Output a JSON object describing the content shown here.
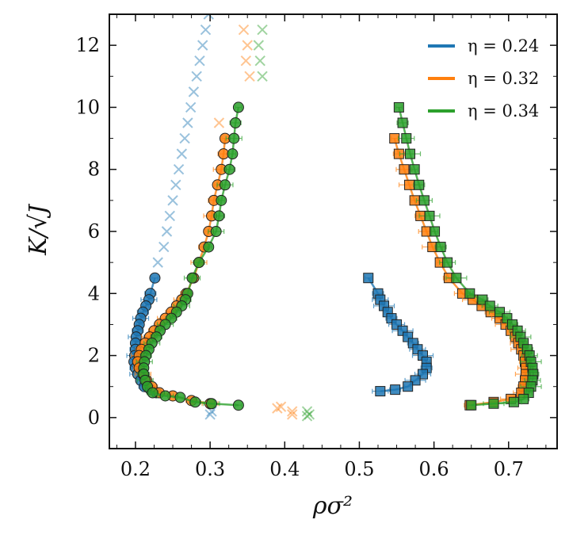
{
  "chart_data": {
    "type": "scatter",
    "xlabel": "ρσ²",
    "ylabel": "K/√J",
    "xlim": [
      0.165,
      0.765
    ],
    "ylim": [
      -1.0,
      13.0
    ],
    "xticks": [
      {
        "value": 0.2,
        "label": "0.2"
      },
      {
        "value": 0.3,
        "label": "0.3"
      },
      {
        "value": 0.4,
        "label": "0.4"
      },
      {
        "value": 0.5,
        "label": "0.5"
      },
      {
        "value": 0.6,
        "label": "0.6"
      },
      {
        "value": 0.7,
        "label": "0.7"
      }
    ],
    "yticks": [
      {
        "value": 0,
        "label": "0"
      },
      {
        "value": 2,
        "label": "2"
      },
      {
        "value": 4,
        "label": "4"
      },
      {
        "value": 6,
        "label": "6"
      },
      {
        "value": 8,
        "label": "8"
      },
      {
        "value": 10,
        "label": "10"
      },
      {
        "value": 12,
        "label": "12"
      }
    ],
    "legend": {
      "placement": "top-right",
      "entries": [
        {
          "label": "η = 0.24",
          "color": "#1f77b4"
        },
        {
          "label": "η = 0.32",
          "color": "#ff7f0e"
        },
        {
          "label": "η = 0.34",
          "color": "#2ca02c"
        }
      ]
    },
    "series": [
      {
        "name": "η = 0.24",
        "color": "#1f77b4",
        "crosses": [
          [
            0.23,
            5.0
          ],
          [
            0.238,
            5.5
          ],
          [
            0.242,
            6.0
          ],
          [
            0.246,
            6.5
          ],
          [
            0.25,
            7.0
          ],
          [
            0.254,
            7.5
          ],
          [
            0.258,
            8.0
          ],
          [
            0.262,
            8.5
          ],
          [
            0.266,
            9.0
          ],
          [
            0.27,
            9.5
          ],
          [
            0.274,
            10.0
          ],
          [
            0.278,
            10.5
          ],
          [
            0.282,
            11.0
          ],
          [
            0.286,
            11.5
          ],
          [
            0.29,
            12.0
          ],
          [
            0.294,
            12.5
          ],
          [
            0.298,
            13.0
          ],
          [
            0.3,
            0.1
          ],
          [
            0.302,
            0.2
          ]
        ],
        "vapor": [
          [
            0.226,
            4.5
          ],
          [
            0.22,
            4.0
          ],
          [
            0.218,
            3.8
          ],
          [
            0.214,
            3.6
          ],
          [
            0.21,
            3.4
          ],
          [
            0.207,
            3.2
          ],
          [
            0.205,
            3.0
          ],
          [
            0.203,
            2.8
          ],
          [
            0.201,
            2.6
          ],
          [
            0.2,
            2.4
          ],
          [
            0.2,
            2.2
          ],
          [
            0.199,
            2.0
          ],
          [
            0.198,
            1.8
          ],
          [
            0.2,
            1.6
          ],
          [
            0.203,
            1.4
          ],
          [
            0.207,
            1.2
          ],
          [
            0.212,
            1.0
          ],
          [
            0.22,
            0.9
          ],
          [
            0.228,
            0.8
          ]
        ],
        "liquid": [
          [
            0.512,
            4.5
          ],
          [
            0.525,
            4.0
          ],
          [
            0.528,
            3.8
          ],
          [
            0.533,
            3.6
          ],
          [
            0.538,
            3.4
          ],
          [
            0.543,
            3.2
          ],
          [
            0.55,
            3.0
          ],
          [
            0.558,
            2.8
          ],
          [
            0.565,
            2.6
          ],
          [
            0.572,
            2.4
          ],
          [
            0.578,
            2.2
          ],
          [
            0.585,
            2.0
          ],
          [
            0.59,
            1.8
          ],
          [
            0.59,
            1.6
          ],
          [
            0.585,
            1.4
          ],
          [
            0.575,
            1.2
          ],
          [
            0.565,
            1.0
          ],
          [
            0.548,
            0.9
          ],
          [
            0.528,
            0.85
          ]
        ]
      },
      {
        "name": "η = 0.32",
        "color": "#ff7f0e",
        "crosses": [
          [
            0.312,
            9.5
          ],
          [
            0.345,
            12.5
          ],
          [
            0.35,
            12.0
          ],
          [
            0.348,
            11.5
          ],
          [
            0.353,
            11.0
          ],
          [
            0.39,
            0.3
          ],
          [
            0.395,
            0.35
          ],
          [
            0.41,
            0.1
          ],
          [
            0.41,
            0.2
          ]
        ],
        "vapor": [
          [
            0.32,
            9.0
          ],
          [
            0.318,
            8.5
          ],
          [
            0.315,
            8.0
          ],
          [
            0.31,
            7.5
          ],
          [
            0.305,
            7.0
          ],
          [
            0.302,
            6.5
          ],
          [
            0.298,
            6.0
          ],
          [
            0.292,
            5.5
          ],
          [
            0.285,
            5.0
          ],
          [
            0.278,
            4.5
          ],
          [
            0.268,
            4.0
          ],
          [
            0.262,
            3.8
          ],
          [
            0.255,
            3.6
          ],
          [
            0.248,
            3.4
          ],
          [
            0.24,
            3.2
          ],
          [
            0.232,
            3.0
          ],
          [
            0.225,
            2.8
          ],
          [
            0.219,
            2.6
          ],
          [
            0.213,
            2.4
          ],
          [
            0.208,
            2.2
          ],
          [
            0.205,
            2.0
          ],
          [
            0.203,
            1.8
          ],
          [
            0.205,
            1.6
          ],
          [
            0.21,
            1.4
          ],
          [
            0.215,
            1.2
          ],
          [
            0.222,
            1.0
          ],
          [
            0.232,
            0.8
          ],
          [
            0.25,
            0.7
          ],
          [
            0.275,
            0.55
          ],
          [
            0.3,
            0.45
          ]
        ],
        "liquid": [
          [
            0.547,
            9.0
          ],
          [
            0.553,
            8.5
          ],
          [
            0.56,
            8.0
          ],
          [
            0.567,
            7.5
          ],
          [
            0.574,
            7.0
          ],
          [
            0.582,
            6.5
          ],
          [
            0.59,
            6.0
          ],
          [
            0.598,
            5.5
          ],
          [
            0.608,
            5.0
          ],
          [
            0.62,
            4.5
          ],
          [
            0.638,
            4.0
          ],
          [
            0.652,
            3.8
          ],
          [
            0.664,
            3.6
          ],
          [
            0.676,
            3.4
          ],
          [
            0.688,
            3.2
          ],
          [
            0.696,
            3.0
          ],
          [
            0.703,
            2.8
          ],
          [
            0.709,
            2.6
          ],
          [
            0.713,
            2.4
          ],
          [
            0.717,
            2.2
          ],
          [
            0.72,
            2.0
          ],
          [
            0.722,
            1.8
          ],
          [
            0.723,
            1.6
          ],
          [
            0.723,
            1.4
          ],
          [
            0.722,
            1.2
          ],
          [
            0.72,
            1.0
          ],
          [
            0.717,
            0.8
          ],
          [
            0.703,
            0.6
          ],
          [
            0.68,
            0.5
          ],
          [
            0.648,
            0.4
          ]
        ]
      },
      {
        "name": "η = 0.34",
        "color": "#2ca02c",
        "crosses": [
          [
            0.37,
            12.5
          ],
          [
            0.365,
            12.0
          ],
          [
            0.367,
            11.5
          ],
          [
            0.37,
            11.0
          ],
          [
            0.43,
            0.2
          ],
          [
            0.433,
            0.1
          ],
          [
            0.43,
            0.05
          ]
        ],
        "vapor": [
          [
            0.338,
            10.0
          ],
          [
            0.334,
            9.5
          ],
          [
            0.332,
            9.0
          ],
          [
            0.33,
            8.5
          ],
          [
            0.326,
            8.0
          ],
          [
            0.32,
            7.5
          ],
          [
            0.315,
            7.0
          ],
          [
            0.312,
            6.5
          ],
          [
            0.308,
            6.0
          ],
          [
            0.298,
            5.5
          ],
          [
            0.285,
            5.0
          ],
          [
            0.276,
            4.5
          ],
          [
            0.27,
            4.0
          ],
          [
            0.267,
            3.8
          ],
          [
            0.262,
            3.6
          ],
          [
            0.255,
            3.4
          ],
          [
            0.248,
            3.2
          ],
          [
            0.24,
            3.0
          ],
          [
            0.233,
            2.8
          ],
          [
            0.228,
            2.6
          ],
          [
            0.222,
            2.4
          ],
          [
            0.218,
            2.2
          ],
          [
            0.214,
            2.0
          ],
          [
            0.212,
            1.8
          ],
          [
            0.211,
            1.6
          ],
          [
            0.211,
            1.4
          ],
          [
            0.213,
            1.2
          ],
          [
            0.216,
            1.0
          ],
          [
            0.223,
            0.8
          ],
          [
            0.24,
            0.7
          ],
          [
            0.26,
            0.65
          ],
          [
            0.28,
            0.5
          ],
          [
            0.302,
            0.45
          ],
          [
            0.338,
            0.4
          ]
        ],
        "liquid": [
          [
            0.553,
            10.0
          ],
          [
            0.558,
            9.5
          ],
          [
            0.563,
            9.0
          ],
          [
            0.568,
            8.5
          ],
          [
            0.574,
            8.0
          ],
          [
            0.58,
            7.5
          ],
          [
            0.587,
            7.0
          ],
          [
            0.594,
            6.5
          ],
          [
            0.601,
            6.0
          ],
          [
            0.609,
            5.5
          ],
          [
            0.618,
            5.0
          ],
          [
            0.63,
            4.5
          ],
          [
            0.648,
            4.0
          ],
          [
            0.665,
            3.8
          ],
          [
            0.675,
            3.6
          ],
          [
            0.688,
            3.4
          ],
          [
            0.698,
            3.2
          ],
          [
            0.705,
            3.0
          ],
          [
            0.712,
            2.8
          ],
          [
            0.716,
            2.6
          ],
          [
            0.72,
            2.4
          ],
          [
            0.725,
            2.2
          ],
          [
            0.728,
            2.0
          ],
          [
            0.73,
            1.8
          ],
          [
            0.732,
            1.6
          ],
          [
            0.733,
            1.4
          ],
          [
            0.732,
            1.2
          ],
          [
            0.73,
            1.0
          ],
          [
            0.727,
            0.8
          ],
          [
            0.72,
            0.6
          ],
          [
            0.707,
            0.5
          ],
          [
            0.68,
            0.45
          ],
          [
            0.65,
            0.4
          ]
        ]
      }
    ]
  }
}
